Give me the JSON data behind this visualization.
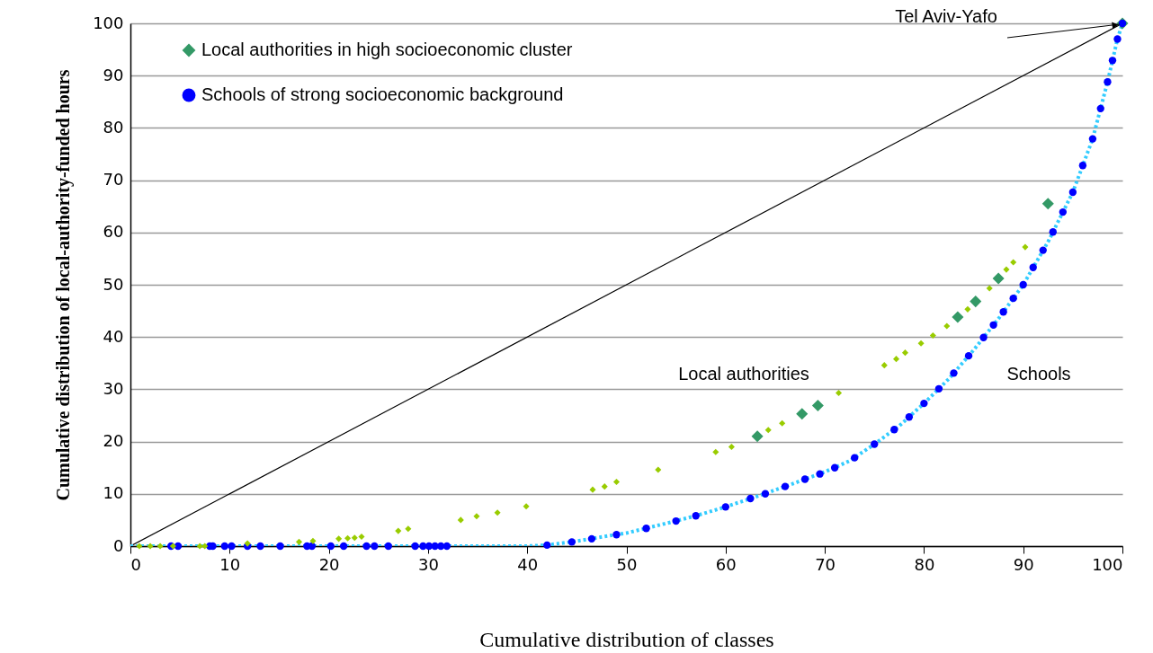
{
  "chart_data": {
    "type": "scatter",
    "xlabel": "Cumulative distribution of classes",
    "ylabel": "Cumulative distribution of local-authority-funded hours",
    "xlim": [
      0,
      100
    ],
    "ylim": [
      0,
      100
    ],
    "xticks": [
      0,
      10,
      20,
      30,
      40,
      50,
      60,
      70,
      80,
      90,
      100
    ],
    "yticks": [
      0,
      10,
      20,
      30,
      40,
      50,
      60,
      70,
      80,
      90,
      100
    ],
    "grid": "y",
    "legend": "top left",
    "series": [
      {
        "type": "line",
        "color": "#000000",
        "line_style": "solid",
        "x": [
          0,
          100
        ],
        "values": [
          0,
          100
        ]
      },
      {
        "type": "line",
        "color": "#33ccff",
        "line_style": "dotted",
        "x": [
          0,
          40,
          42,
          44.8,
          47,
          50,
          53.9,
          57,
          60,
          63.6,
          66,
          70,
          72.5,
          75,
          77.5,
          80,
          82.5,
          85,
          87.5,
          90,
          92.5,
          95,
          97,
          98.5,
          99.5,
          100
        ],
        "values": [
          0,
          0,
          0.2,
          0.9,
          1.6,
          2.5,
          4.3,
          5.8,
          7.5,
          9.8,
          11.4,
          14.2,
          16.3,
          19.5,
          23,
          27.3,
          32,
          37.5,
          43.5,
          50,
          58.2,
          67.7,
          77.9,
          88.8,
          97,
          100
        ]
      },
      {
        "marker": "diamond",
        "name": "Local authorities in high socioeconomic cluster",
        "color": "#339966",
        "x": [
          63.2,
          67.7,
          69.3,
          83.4,
          85.2,
          87.5,
          92.5,
          100
        ],
        "values": [
          21.0,
          25.3,
          26.9,
          43.8,
          46.8,
          51.2,
          65.5,
          100
        ]
      },
      {
        "marker": "circle",
        "name": "Schools of strong socioeconomic background",
        "color": "#0000ff",
        "x": [
          4.1,
          4.8,
          8.0,
          8.3,
          9.5,
          10.2,
          11.8,
          13.1,
          15.1,
          17.8,
          18.3,
          20.2,
          21.5,
          23.8,
          24.6,
          26.0,
          28.7,
          29.5,
          30.1,
          30.7,
          31.3,
          31.9,
          42,
          44.5,
          46.5,
          49,
          52,
          55,
          57,
          60,
          62.5,
          64,
          66,
          68,
          69.5,
          71,
          73,
          75,
          77,
          78.5,
          80,
          81.5,
          83,
          84.5,
          86,
          87,
          88,
          89,
          90,
          91,
          92,
          93,
          94,
          95,
          96,
          97,
          97.8,
          98.5,
          99,
          99.5,
          100
        ],
        "values": [
          0,
          0,
          0,
          0,
          0,
          0,
          0,
          0,
          0,
          0,
          0,
          0,
          0,
          0,
          0,
          0,
          0,
          0,
          0,
          0,
          0,
          0,
          0.2,
          0.8,
          1.4,
          2.2,
          3.4,
          4.8,
          5.8,
          7.5,
          9.1,
          10.0,
          11.4,
          12.8,
          13.8,
          15.0,
          16.9,
          19.5,
          22.3,
          24.7,
          27.3,
          30.1,
          33.1,
          36.4,
          39.9,
          42.3,
          44.8,
          47.4,
          50,
          53.3,
          56.6,
          60.1,
          63.9,
          67.7,
          72.8,
          77.9,
          83.7,
          88.8,
          92.9,
          97,
          100
        ]
      },
      {
        "marker": "diamond",
        "color": "#99cc00",
        "x": [
          0.9,
          2.0,
          3.0,
          4.3,
          7.0,
          7.5,
          11.8,
          17.0,
          18.4,
          21.0,
          21.9,
          22.6,
          23.3,
          27.0,
          28.0,
          33.3,
          34.9,
          37.0,
          39.9,
          46.6,
          47.8,
          49.0,
          53.2,
          59.0,
          60.6,
          64.3,
          65.7,
          71.4,
          76.0,
          77.2,
          78.1,
          79.7,
          80.9,
          82.3,
          84.4,
          86.6,
          88.3,
          89.0,
          90.2
        ],
        "values": [
          0,
          0,
          0,
          0,
          0,
          0,
          0.5,
          0.8,
          1.0,
          1.4,
          1.5,
          1.6,
          1.8,
          2.9,
          3.3,
          5.0,
          5.7,
          6.4,
          7.6,
          10.8,
          11.4,
          12.3,
          14.6,
          18.0,
          19.0,
          22.2,
          23.5,
          29.3,
          34.6,
          35.8,
          37.0,
          38.8,
          40.3,
          42.1,
          45.3,
          49.3,
          52.9,
          54.3,
          57.2
        ]
      }
    ],
    "annotations": [
      "Local authorities",
      "Schools",
      {
        "text": "Tel Aviv-Yafo",
        "x": 100,
        "y": 100
      }
    ]
  }
}
